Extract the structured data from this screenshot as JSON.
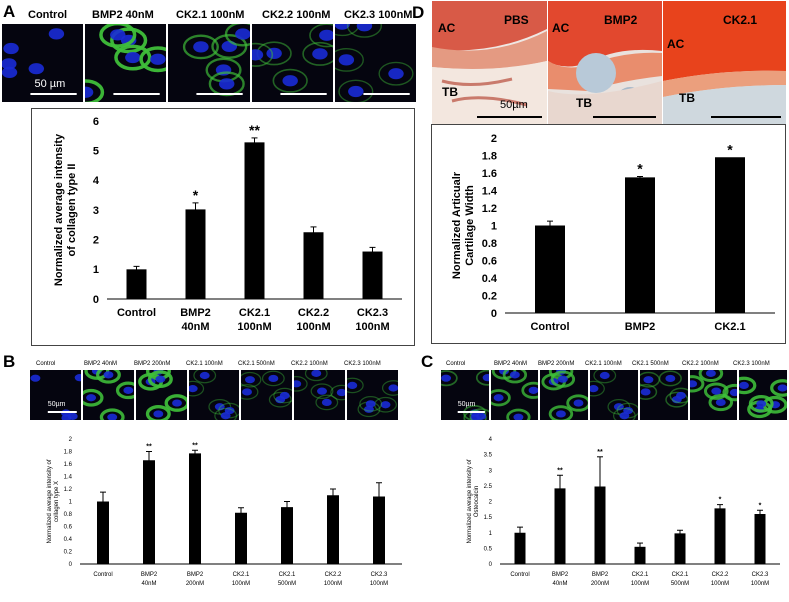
{
  "panelA": {
    "letter": "A",
    "strip_labels": [
      "Control",
      "BMP2 40nM",
      "CK2.1 100nM",
      "CK2.2 100nM",
      "CK2.3 100nM"
    ],
    "scale": "50 µm"
  },
  "panelB": {
    "letter": "B",
    "strip_labels": [
      "Control",
      "BMP2 40nM",
      "BMP2 200nM",
      "CK2.1 100nM",
      "CK2.1 500nM",
      "CK2.2 100nM",
      "CK2.3 100nM"
    ],
    "scale": "50µm"
  },
  "panelC": {
    "letter": "C",
    "strip_labels": [
      "Control",
      "BMP2 40nM",
      "BMP2 200nM",
      "CK2.1 100nM",
      "CK2.1 500nM",
      "CK2.2 100nM",
      "CK2.3 100nM"
    ],
    "scale": "50µm"
  },
  "panelD": {
    "letter": "D",
    "image_labels": [
      "PBS",
      "BMP2",
      "CK2.1"
    ],
    "zone_labels": {
      "ac": "AC",
      "tb": "TB"
    },
    "scale": "50µm"
  },
  "colors": {
    "bar": "#000000",
    "nucleus": "#1a2bd6",
    "stain": "#3fbf3a",
    "safranin": "#e23b1e"
  },
  "chart_data": [
    {
      "id": "A",
      "type": "bar",
      "categories": [
        "Control",
        "BMP2 40nM",
        "CK2.1 100nM",
        "CK2.2 100nM",
        "CK2.3 100nM"
      ],
      "tick_lines": [
        [
          "Control"
        ],
        [
          "BMP2",
          "40nM"
        ],
        [
          "CK2.1",
          "100nM"
        ],
        [
          "CK2.2",
          "100nM"
        ],
        [
          "CK2.3",
          "100nM"
        ]
      ],
      "values": [
        1.0,
        3.02,
        5.28,
        2.25,
        1.6
      ],
      "errors": [
        0.1,
        0.22,
        0.15,
        0.18,
        0.14
      ],
      "significance": [
        "",
        "*",
        "**",
        "",
        ""
      ],
      "ylabel": "Normalized average intensity of collagen type II",
      "ylabel_lines": [
        "Normalized average intensity",
        "of collagen type II"
      ],
      "ylim": [
        0,
        6
      ],
      "yticks": [
        0,
        1,
        2,
        3,
        4,
        5,
        6
      ],
      "grid": false
    },
    {
      "id": "B",
      "type": "bar",
      "categories": [
        "Control",
        "BMP2 40nM",
        "BMP2 200nM",
        "CK2.1 100nM",
        "CK2.1 500nM",
        "CK2.2 100nM",
        "CK2.3 100nM"
      ],
      "tick_lines": [
        [
          "Control"
        ],
        [
          "BMP2",
          "40nM"
        ],
        [
          "BMP2",
          "200nM"
        ],
        [
          "CK2.1",
          "100nM"
        ],
        [
          "CK2.1",
          "500nM"
        ],
        [
          "CK2.2",
          "100nM"
        ],
        [
          "CK2.3",
          "100nM"
        ]
      ],
      "values": [
        1.0,
        1.66,
        1.77,
        0.82,
        0.91,
        1.1,
        1.08
      ],
      "errors": [
        0.15,
        0.14,
        0.05,
        0.08,
        0.09,
        0.1,
        0.22
      ],
      "significance": [
        "",
        "**",
        "**",
        "",
        "",
        "",
        ""
      ],
      "ylabel": "Normalized average intensity of collagen type X",
      "ylabel_lines": [
        "Normalized average intensity of",
        "collagen type X"
      ],
      "ylim": [
        0,
        2
      ],
      "yticks": [
        0,
        0.2,
        0.4,
        0.6,
        0.8,
        1,
        1.2,
        1.4,
        1.6,
        1.8,
        2
      ],
      "grid": false
    },
    {
      "id": "C",
      "type": "bar",
      "categories": [
        "Control",
        "BMP2 40nM",
        "BMP2 200nM",
        "CK2.1 100nM",
        "CK2.1 500nM",
        "CK2.2 100nM",
        "CK2.3 100nM"
      ],
      "tick_lines": [
        [
          "Control"
        ],
        [
          "BMP2",
          "40nM"
        ],
        [
          "BMP2",
          "200nM"
        ],
        [
          "CK2.1",
          "100nM"
        ],
        [
          "CK2.1",
          "500nM"
        ],
        [
          "CK2.2",
          "100nM"
        ],
        [
          "CK2.3",
          "100nM"
        ]
      ],
      "values": [
        1.0,
        2.42,
        2.48,
        0.55,
        0.98,
        1.78,
        1.6
      ],
      "errors": [
        0.18,
        0.42,
        0.95,
        0.12,
        0.1,
        0.12,
        0.12
      ],
      "significance": [
        "",
        "**",
        "**",
        "",
        "",
        "*",
        "*"
      ],
      "ylabel": "Normalized average intensity of Osteocalcin",
      "ylabel_lines": [
        "Normalized average intensity of",
        "Osteocalcin"
      ],
      "ylim": [
        0,
        4
      ],
      "yticks": [
        0,
        0.5,
        1,
        1.5,
        2,
        2.5,
        3,
        3.5,
        4
      ],
      "grid": false
    },
    {
      "id": "D",
      "type": "bar",
      "categories": [
        "Control",
        "BMP2",
        "CK2.1"
      ],
      "tick_lines": [
        [
          "Control"
        ],
        [
          "BMP2"
        ],
        [
          "CK2.1"
        ]
      ],
      "values": [
        1.0,
        1.55,
        1.78
      ],
      "errors": [
        0.05,
        0.01,
        0.0
      ],
      "significance": [
        "",
        "*",
        "*"
      ],
      "ylabel": "Normalized Articualr Cartilage Width",
      "ylabel_lines": [
        "Normalized Articualr",
        "Cartilage Width"
      ],
      "ylim": [
        0,
        2
      ],
      "yticks": [
        0,
        0.2,
        0.4,
        0.6,
        0.8,
        1,
        1.2,
        1.4,
        1.6,
        1.8,
        2
      ],
      "grid": false
    }
  ]
}
